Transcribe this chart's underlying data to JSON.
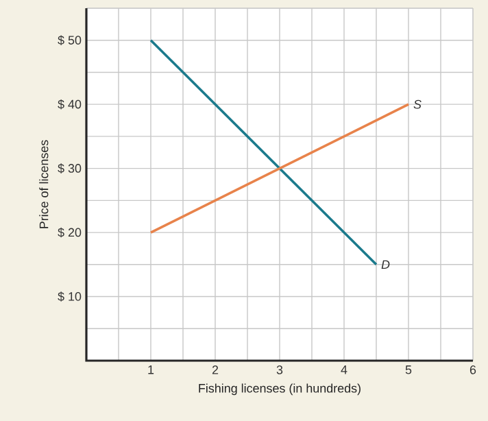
{
  "chart_data": {
    "type": "line",
    "xlabel": "Fishing licenses (in hundreds)",
    "ylabel": "Price of licenses",
    "xlim": [
      0,
      6
    ],
    "ylim": [
      0,
      55
    ],
    "xticks": [
      {
        "value": 0.5,
        "label": null
      },
      1,
      {
        "value": 1.5,
        "label": null
      },
      2,
      {
        "value": 2.5,
        "label": null
      },
      3,
      {
        "value": 3.5,
        "label": null
      },
      4,
      {
        "value": 4.5,
        "label": null
      },
      5,
      {
        "value": 5.5,
        "label": null
      },
      6
    ],
    "yticks": [
      {
        "value": 5,
        "label": null
      },
      {
        "value": 10,
        "label": "$ 10"
      },
      {
        "value": 15,
        "label": null
      },
      {
        "value": 20,
        "label": "$ 20"
      },
      {
        "value": 25,
        "label": null
      },
      {
        "value": 30,
        "label": "$ 30"
      },
      {
        "value": 35,
        "label": null
      },
      {
        "value": 40,
        "label": "$ 40"
      },
      {
        "value": 45,
        "label": null
      },
      {
        "value": 50,
        "label": "$ 50"
      },
      {
        "value": 55,
        "label": null
      }
    ],
    "grid": true,
    "legend": false,
    "series": [
      {
        "name": "D",
        "color": "#1b7a8c",
        "x": [
          1,
          4.5
        ],
        "values": [
          50,
          15
        ]
      },
      {
        "name": "S",
        "color": "#e8834b",
        "x": [
          1,
          5
        ],
        "values": [
          20,
          40
        ]
      }
    ]
  }
}
